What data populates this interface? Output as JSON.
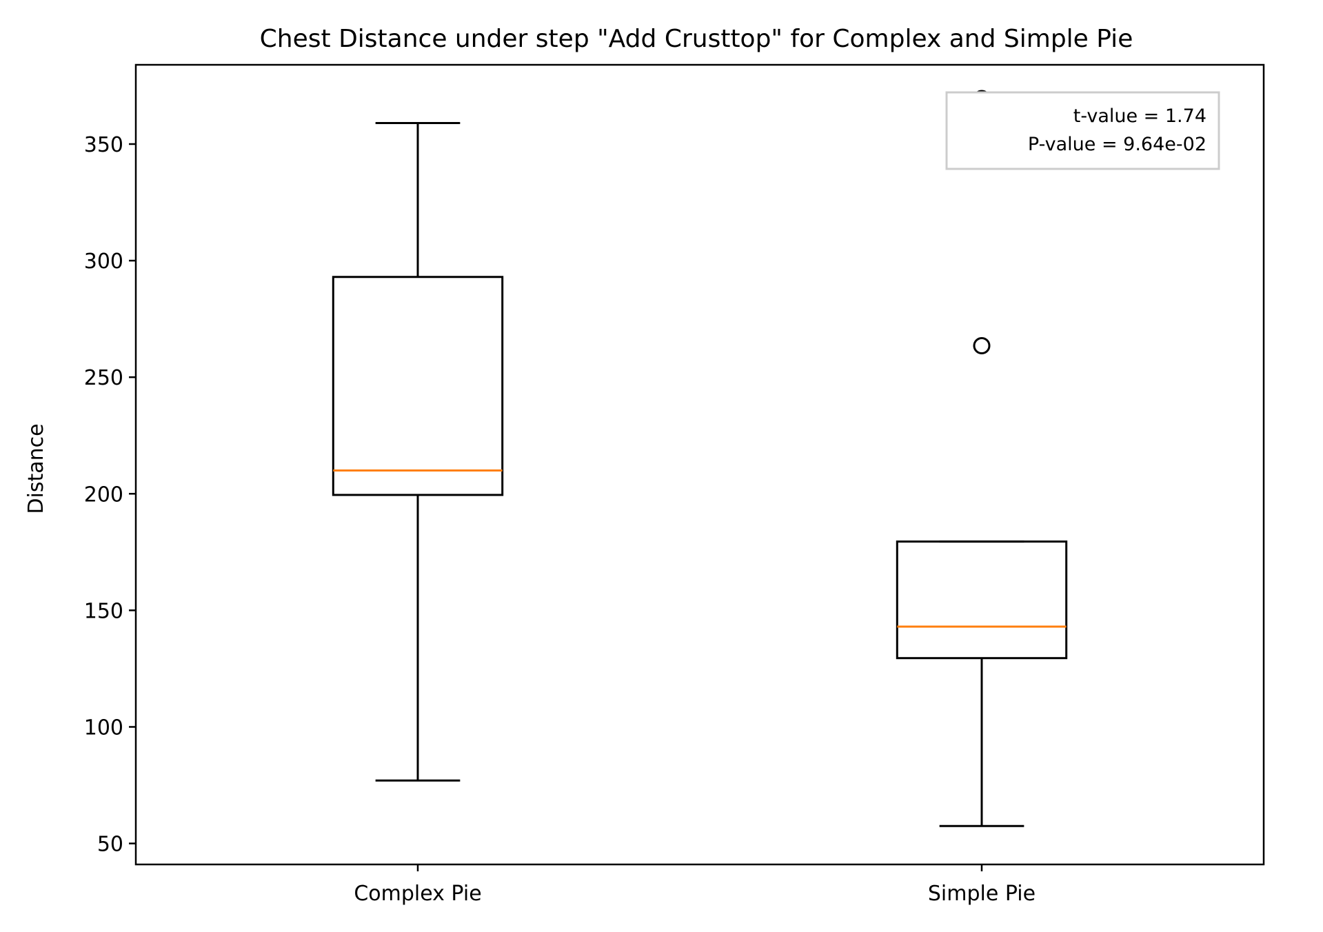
{
  "chart_data": {
    "type": "boxplot",
    "title": "Chest Distance under step \"Add Crusttop\" for Complex and Simple Pie",
    "xlabel": "",
    "ylabel": "Distance",
    "ylim": [
      41,
      384
    ],
    "yticks": [
      50,
      100,
      150,
      200,
      250,
      300,
      350
    ],
    "categories": [
      "Complex Pie",
      "Simple Pie"
    ],
    "boxes": [
      {
        "whisker_low": 77,
        "q1": 199.5,
        "median": 210,
        "q3": 293,
        "whisker_high": 359,
        "fliers": []
      },
      {
        "whisker_low": 57.5,
        "q1": 129.5,
        "median": 143,
        "q3": 179.5,
        "whisker_high": 179.5,
        "fliers": [
          263.5,
          360.5,
          369.5
        ]
      }
    ],
    "grid": false,
    "annotation": {
      "lines": [
        "t-value = 1.74",
        "P-value = 9.64e-02"
      ],
      "placement": "top-right"
    },
    "colors": {
      "box": "#000000",
      "median": "#ff7f0e",
      "annotation_border": "#cccccc"
    }
  }
}
